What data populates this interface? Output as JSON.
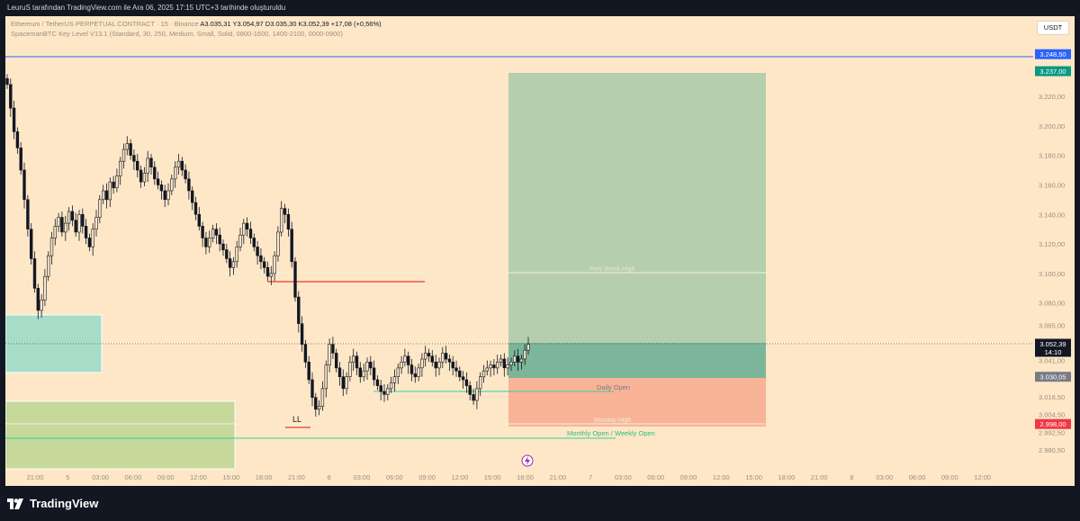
{
  "header": {
    "attribution": "LeuruS tarafından TradingView.com ile Ara 06, 2025 17:15 UTC+3 tarihinde oluşturuldu"
  },
  "legend": {
    "symbol": "Ethereum / TetherUS PERPETUAL CONTRACT · 15 · Binance",
    "ohlc": "A3.035,31 Y3.054,97 D3.035,30 K3.052,39 +17,08 (+0,56%)",
    "indicator": "SpacemanBTC Key Level V13.1 (Standard, 30, 250, Medium, Small, Solid, 0800-1600, 1400-2100, 0000-0900)"
  },
  "currency_button": "USDT",
  "brand": "TradingView",
  "colors": {
    "background": "#fde7c7",
    "bull": "#131722",
    "bear": "#131722",
    "target_zone": "#b5cfae",
    "stop_zone": "#f9b396",
    "entry_zone": "#7cb69a",
    "blue_line": "#2962ff",
    "green_line": "#2ed39a",
    "red_line": "#f23645"
  },
  "chart_data": {
    "type": "candlestick",
    "y_ticks": [
      "3.220,00",
      "3.200,00",
      "3.180,00",
      "3.160,00",
      "3.140,00",
      "3.120,00",
      "3.100,00",
      "3.080,00",
      "3.065,00",
      "3.041,00",
      "3.016,50",
      "3.004,50",
      "2.992,50",
      "2.980,50"
    ],
    "y_tick_values": [
      3220,
      3200,
      3180,
      3160,
      3140,
      3120,
      3100,
      3080,
      3065,
      3041,
      3016.5,
      3004.5,
      2992.5,
      2980.5
    ],
    "y_range": [
      2974,
      3262
    ],
    "x_ticks": [
      "21:00",
      "5",
      "03:00",
      "06:00",
      "09:00",
      "12:00",
      "15:00",
      "18:00",
      "21:00",
      "6",
      "03:00",
      "06:00",
      "09:00",
      "12:00",
      "15:00",
      "18:00",
      "21:00",
      "7",
      "03:00",
      "06:00",
      "09:00",
      "12:00",
      "15:00",
      "18:00",
      "21:00",
      "8",
      "03:00",
      "06:00",
      "09:00",
      "12:00"
    ],
    "price_labels": [
      {
        "text": "3.248,50",
        "value": 3248.5,
        "color": "#2962ff"
      },
      {
        "text": "3.237,00",
        "value": 3237,
        "color": "#089981"
      },
      {
        "text": "3.052,39",
        "value": 3052.39,
        "color": "#131722",
        "countdown": "14:10"
      },
      {
        "text": "3.030,05",
        "value": 3030.05,
        "color": "#787b86"
      },
      {
        "text": "2.998,00",
        "value": 2998,
        "color": "#f23645"
      }
    ],
    "key_levels": [
      {
        "label": "Prev Week High",
        "value": 3100
      },
      {
        "label": "Daily Open",
        "value": 3021
      },
      {
        "label": "Monday High",
        "value": 3001
      },
      {
        "label": "Monthly Open / Weekly Open",
        "value": 2993
      }
    ],
    "annotations": [
      "LL"
    ],
    "position": {
      "target": 3237,
      "entry": 3030.05,
      "stop": 2998
    },
    "current_price": 3052.39,
    "close_series": [
      3228,
      3212,
      3196,
      3185,
      3170,
      3150,
      3130,
      3110,
      3090,
      3075,
      3082,
      3098,
      3112,
      3124,
      3132,
      3138,
      3128,
      3134,
      3142,
      3136,
      3128,
      3140,
      3132,
      3124,
      3118,
      3130,
      3138,
      3150,
      3156,
      3150,
      3162,
      3158,
      3166,
      3176,
      3184,
      3188,
      3180,
      3176,
      3170,
      3162,
      3168,
      3178,
      3172,
      3164,
      3160,
      3156,
      3150,
      3156,
      3164,
      3172,
      3176,
      3170,
      3164,
      3156,
      3148,
      3140,
      3132,
      3124,
      3118,
      3124,
      3130,
      3126,
      3120,
      3116,
      3110,
      3104,
      3108,
      3118,
      3126,
      3134,
      3130,
      3124,
      3118,
      3112,
      3108,
      3104,
      3098,
      3100,
      3112,
      3128,
      3144,
      3140,
      3130,
      3108,
      3084,
      3066,
      3052,
      3040,
      3028,
      3016,
      3008,
      3010,
      3022,
      3038,
      3052,
      3046,
      3036,
      3030,
      3022,
      3030,
      3040,
      3044,
      3036,
      3030,
      3034,
      3040,
      3036,
      3028,
      3024,
      3020,
      3018,
      3022,
      3026,
      3030,
      3036,
      3040,
      3044,
      3038,
      3032,
      3030,
      3036,
      3042,
      3046,
      3044,
      3040,
      3036,
      3040,
      3046,
      3042,
      3040,
      3036,
      3034,
      3030,
      3028,
      3024,
      3018,
      3014,
      3022,
      3030,
      3034,
      3036,
      3038,
      3036,
      3040,
      3042,
      3036,
      3038,
      3040,
      3044,
      3040,
      3042,
      3048,
      3052
    ]
  }
}
